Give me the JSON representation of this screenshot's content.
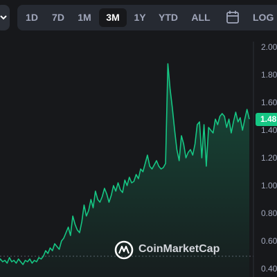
{
  "toolbar": {
    "ranges": [
      "1D",
      "7D",
      "1M",
      "3M",
      "1Y",
      "YTD",
      "ALL"
    ],
    "active_range": "3M",
    "calendar_icon": "calendar-icon",
    "log_label": "LOG",
    "dropdown_icon": "chevron-down-icon"
  },
  "colors": {
    "background": "#17181b",
    "line": "#16c784",
    "axis_text": "#a1a7bb",
    "toolbar_bg": "#262a32"
  },
  "price_label": "1.48",
  "watermark": {
    "text": "CoinMarketCap",
    "icon": "coinmarketcap-logo-icon"
  },
  "chart_data": {
    "type": "area",
    "y_ticks": [
      "2.00",
      "1.80",
      "1.60",
      "1.40",
      "1.20",
      "1.00",
      "0.80",
      "0.60",
      "0.40"
    ],
    "ylim": [
      0.38,
      2.02
    ],
    "y_axis_side": "right",
    "grid": false,
    "dotted_reference_value": 0.4,
    "current_value": 1.48,
    "series": [
      {
        "values": [
          0.46,
          0.44,
          0.47,
          0.45,
          0.46,
          0.44,
          0.48,
          0.45,
          0.46,
          0.44,
          0.47,
          0.45,
          0.43,
          0.46,
          0.45,
          0.47,
          0.44,
          0.46,
          0.45,
          0.48,
          0.47,
          0.49,
          0.53,
          0.51,
          0.55,
          0.53,
          0.58,
          0.56,
          0.54,
          0.6,
          0.62,
          0.66,
          0.7,
          0.64,
          0.78,
          0.72,
          0.68,
          0.66,
          0.74,
          0.86,
          0.78,
          0.82,
          0.9,
          0.84,
          0.96,
          0.9,
          0.88,
          0.92,
          0.98,
          0.94,
          0.88,
          0.93,
          1.0,
          0.96,
          1.02,
          0.97,
          0.95,
          1.04,
          1.0,
          1.06,
          1.02,
          1.03,
          1.08,
          1.05,
          1.12,
          1.1,
          1.16,
          1.22,
          1.14,
          1.12,
          1.15,
          1.18,
          1.14,
          1.12,
          1.13,
          1.16,
          1.88,
          1.7,
          1.56,
          1.4,
          1.26,
          1.18,
          1.36,
          1.3,
          1.2,
          1.24,
          1.26,
          1.22,
          1.3,
          1.44,
          1.46,
          1.2,
          1.44,
          1.14,
          1.42,
          1.4,
          1.38,
          1.48,
          1.44,
          1.5,
          1.52,
          1.5,
          1.42,
          1.48,
          1.38,
          1.46,
          1.53,
          1.46,
          1.49,
          1.4,
          1.48,
          1.55,
          1.48
        ]
      }
    ]
  }
}
